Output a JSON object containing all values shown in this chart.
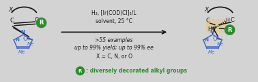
{
  "bg_color": "#d3d3d3",
  "green_color": "#2d8c2d",
  "blue_color": "#4169cc",
  "black_color": "#1a1a1a",
  "tan_color": "#e8c87a",
  "condition_line1": "H₂, [Ir(COD)Cl]₂/L",
  "condition_line2": "solvent, 25 °C",
  "condition_line3": ">55 examples",
  "condition_line4": "up to 99% yield; up to 99% ee",
  "condition_line5": "X = C, N, or O",
  "legend_text": ": diversely decorated alkyl groups",
  "figsize": [
    3.78,
    1.21
  ],
  "dpi": 100
}
